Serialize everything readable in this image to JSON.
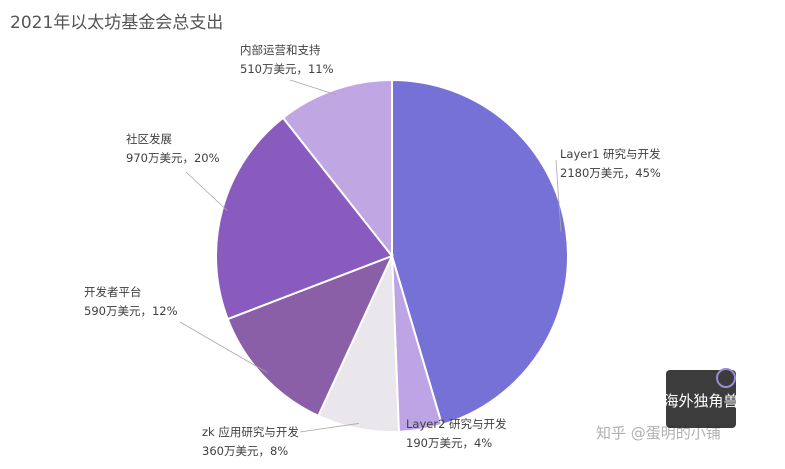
{
  "chart_data": {
    "type": "pie",
    "title": "2021年以太坊基金会总支出",
    "unit": "万美元",
    "slices": [
      {
        "label": "Layer1 研究与开发",
        "value": 2180,
        "value_text": "2180万美元，45%",
        "color": "#7571d6"
      },
      {
        "label": "Layer2 研究与开发",
        "value": 190,
        "value_text": "190万美元，4%",
        "color": "#bda4e4"
      },
      {
        "label": "zk 应用研究与开发",
        "value": 360,
        "value_text": "360万美元，8%",
        "color": "#e9e6ec"
      },
      {
        "label": "开发者平台",
        "value": 590,
        "value_text": "590万美元，12%",
        "color": "#8a5fa8"
      },
      {
        "label": "社区发展",
        "value": 970,
        "value_text": "970万美元，20%",
        "color": "#8a5bbf"
      },
      {
        "label": "内部运营和支持",
        "value": 510,
        "value_text": "510万美元，11%",
        "color": "#c1a6e4"
      }
    ]
  },
  "watermark": {
    "text": "知乎 @蛋明的小铺",
    "logo_text": "海外独角兽"
  }
}
